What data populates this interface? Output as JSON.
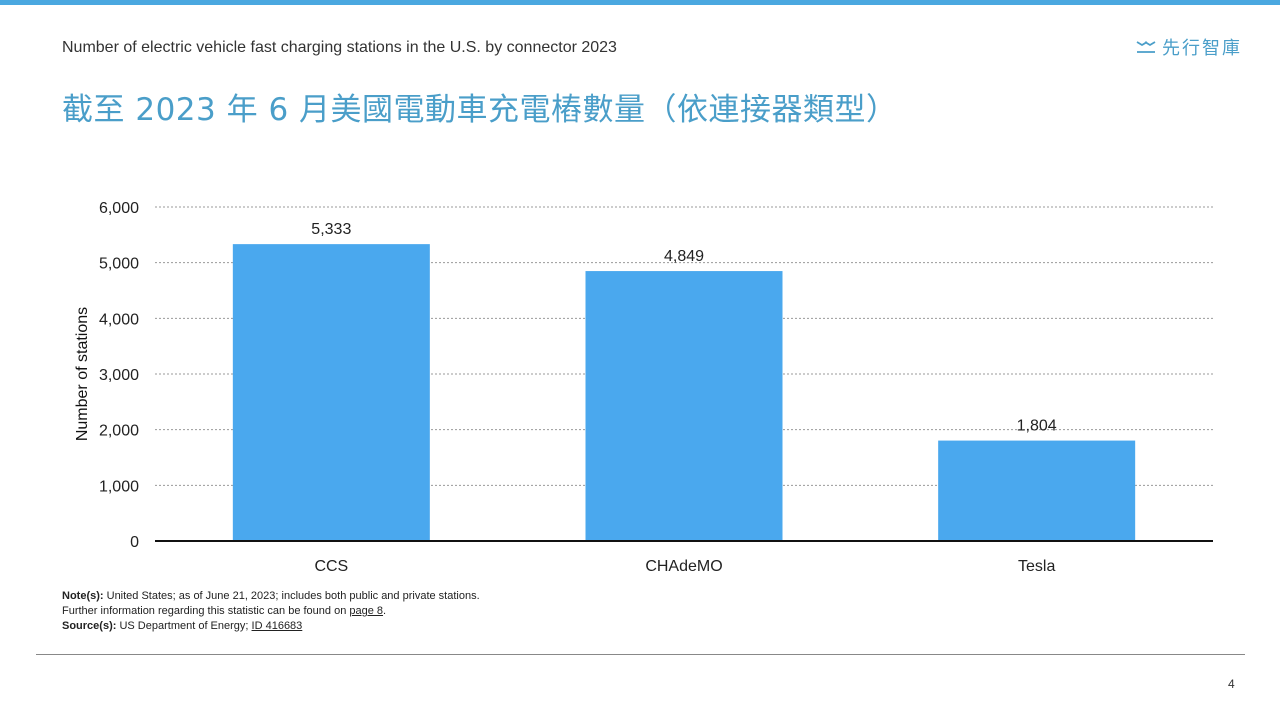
{
  "header": {
    "subtitle": "Number of electric vehicle fast charging stations in the U.S. by connector 2023",
    "title": "截至 2023 年 6 月美國電動車充電樁數量（依連接器類型）",
    "logo_text": "先行智庫",
    "accent_color": "#4aa8e0"
  },
  "chart_data": {
    "type": "bar",
    "categories": [
      "CCS",
      "CHAdeMO",
      "Tesla"
    ],
    "values": [
      5333,
      4849,
      1804
    ],
    "value_labels": [
      "5,333",
      "4,849",
      "1,804"
    ],
    "ylabel": "Number of stations",
    "xlabel": "",
    "ylim": [
      0,
      6000
    ],
    "yticks": [
      0,
      1000,
      2000,
      3000,
      4000,
      5000,
      6000
    ],
    "ytick_labels": [
      "0",
      "1,000",
      "2,000",
      "3,000",
      "4,000",
      "5,000",
      "6,000"
    ],
    "grid": true,
    "bar_color": "#4aa8ee"
  },
  "footer": {
    "note_label": "Note(s):",
    "note_text": " United States;  as of June  21, 2023; includes both public and private stations.",
    "further_text": "Further  information regarding this statistic can be found on ",
    "further_link": "page 8",
    "further_end": ".",
    "source_label": "Source(s):",
    "source_text": " US Department  of Energy; ",
    "source_link": "ID 416683",
    "page_number": "4"
  }
}
